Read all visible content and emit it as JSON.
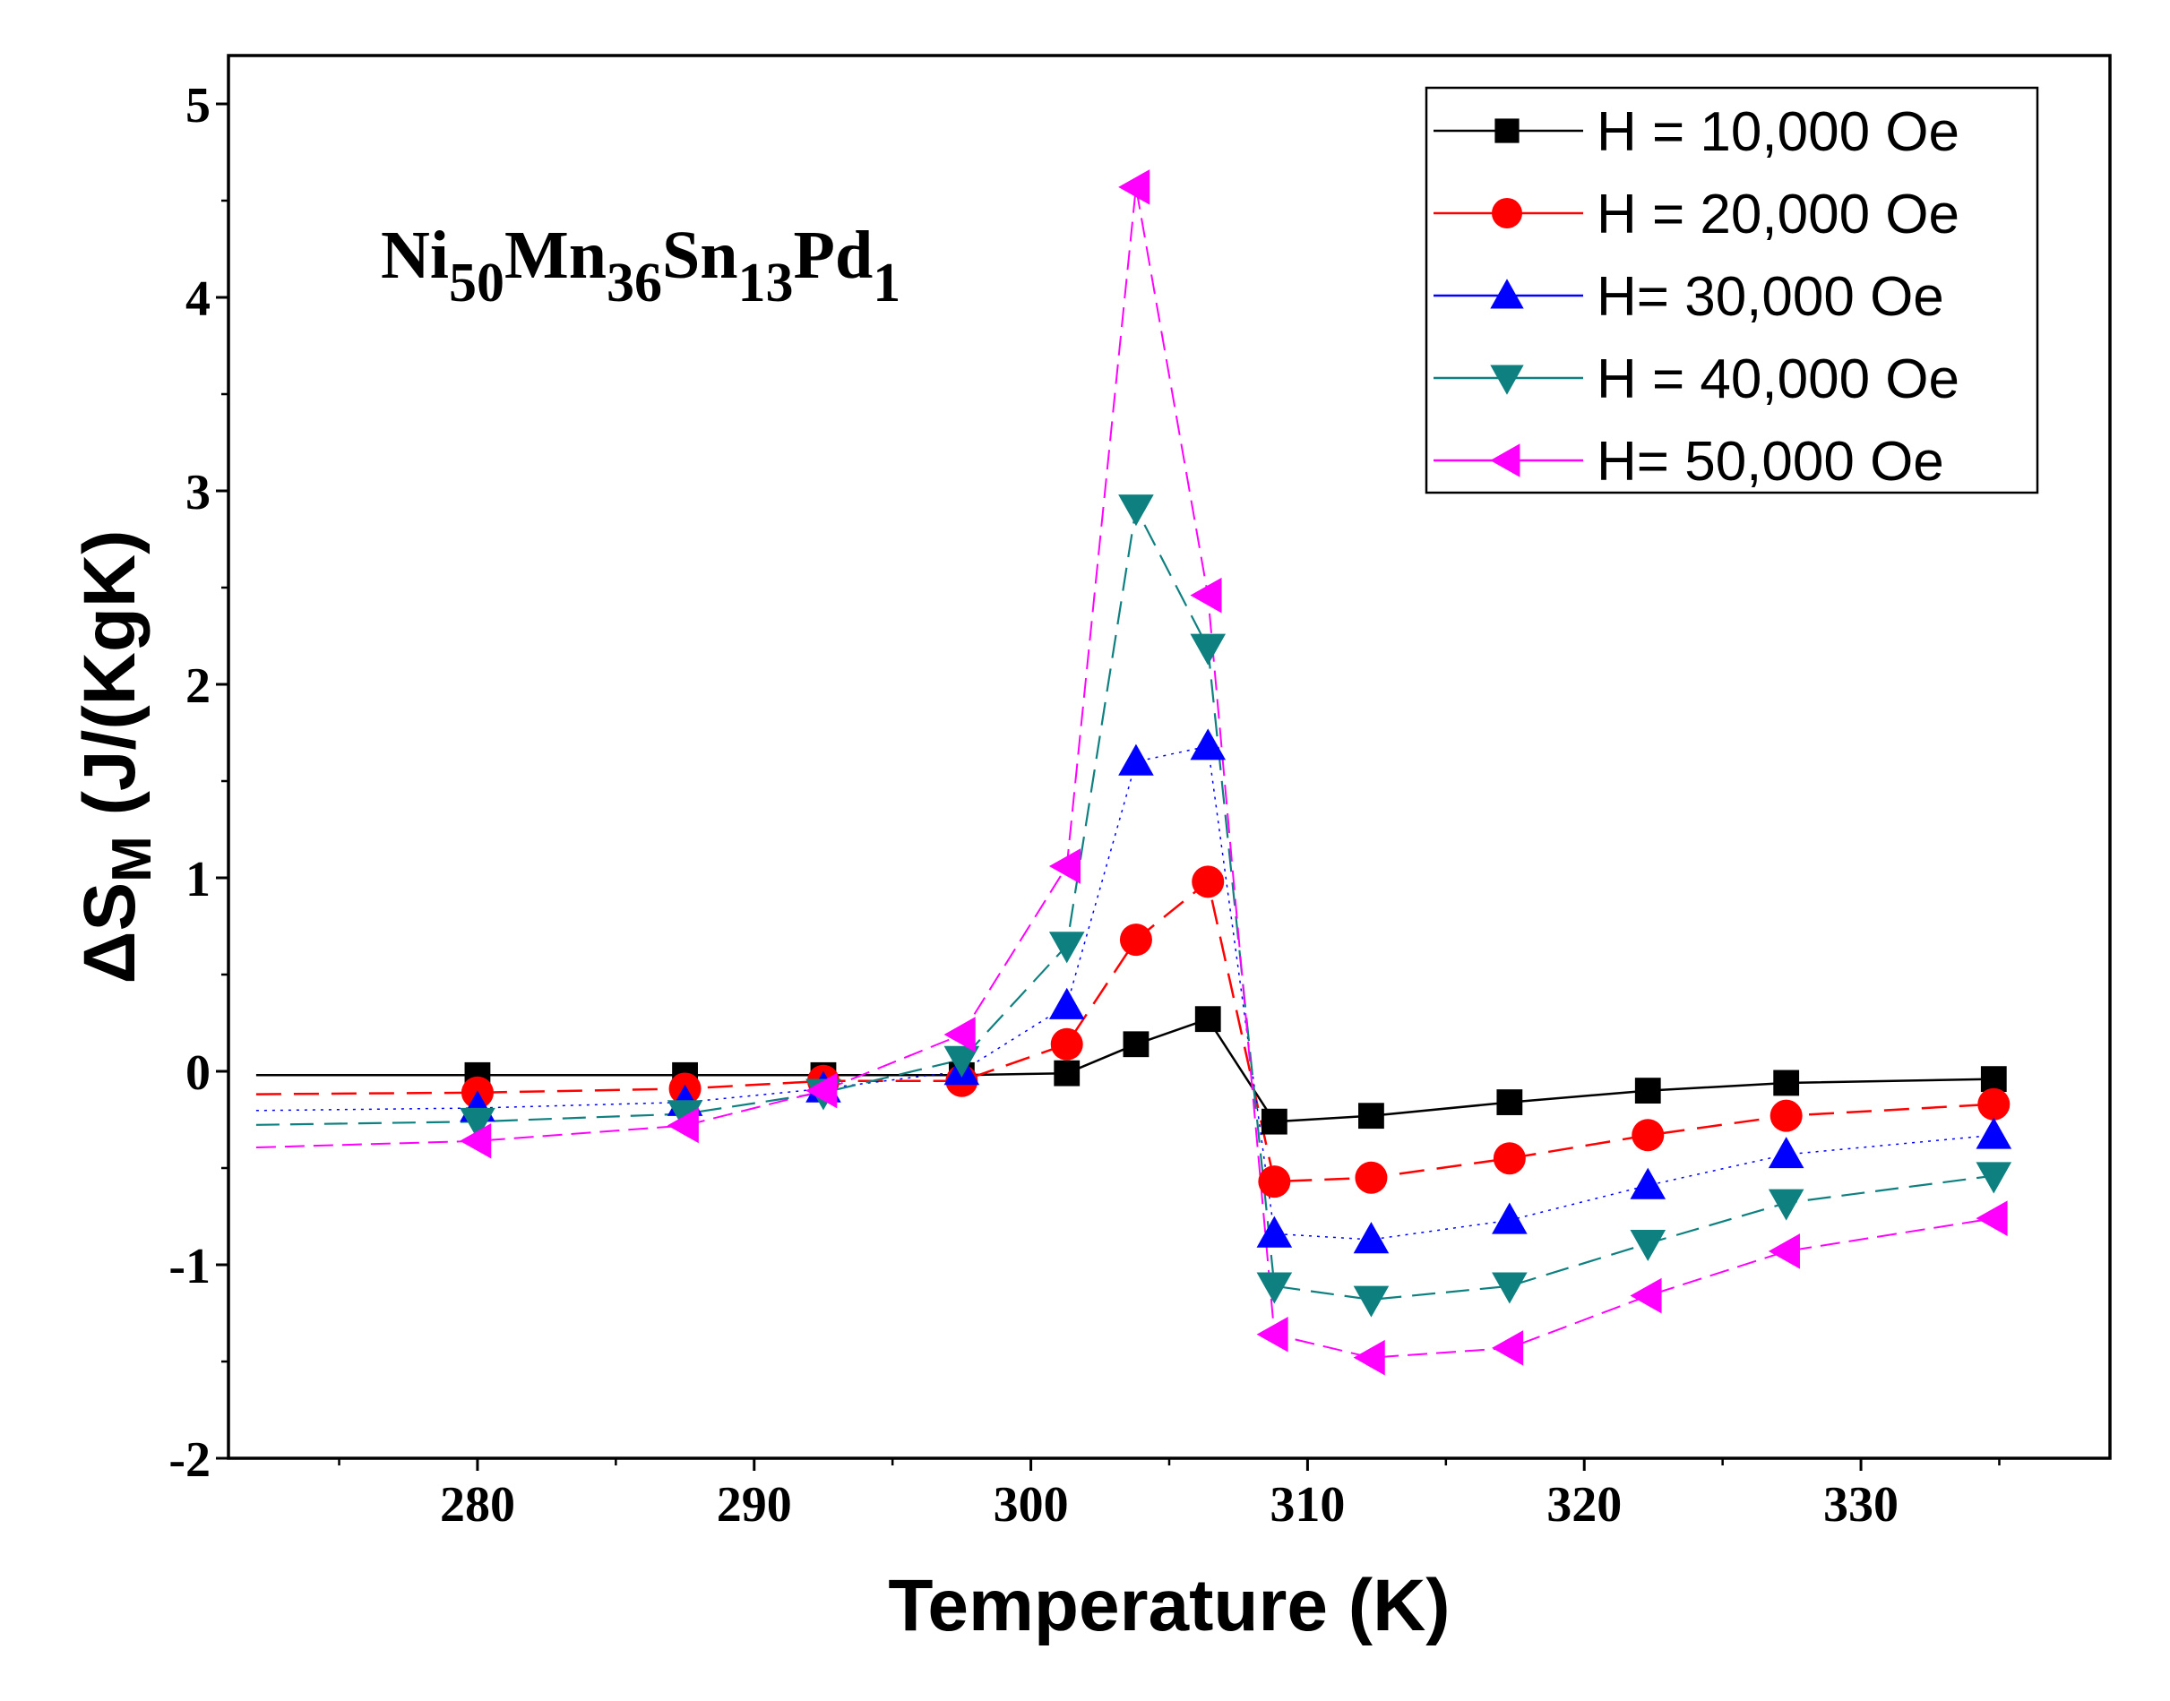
{
  "chart_data": {
    "type": "line",
    "title": "",
    "annotation": {
      "parts": [
        {
          "text": "Ni",
          "sub": false
        },
        {
          "text": "50",
          "sub": true
        },
        {
          "text": "Mn",
          "sub": false
        },
        {
          "text": "36",
          "sub": true
        },
        {
          "text": "Sn",
          "sub": false
        },
        {
          "text": "13",
          "sub": true
        },
        {
          "text": "Pd",
          "sub": false
        },
        {
          "text": "1",
          "sub": true
        }
      ]
    },
    "xlabel": "Temperature (K)",
    "ylabel": {
      "main": "ΔS",
      "sub": "M",
      "rest": " (J/(KgK)"
    },
    "xlim": [
      271,
      339
    ],
    "ylim": [
      -2,
      5.25
    ],
    "xticks": [
      "280",
      "290",
      "300",
      "310",
      "320",
      "330"
    ],
    "yticks": [
      "-2",
      "-1",
      "0",
      "1",
      "2",
      "3",
      "4",
      "5"
    ],
    "legend_position": "top-right",
    "x": [
      280,
      287.5,
      292.5,
      297.5,
      301.3,
      303.8,
      306.4,
      308.8,
      312.3,
      317.3,
      322.3,
      327.3,
      334.8
    ],
    "series": [
      {
        "name": "H = 10,000 Oe",
        "color": "#000000",
        "marker": "square",
        "values": [
          -0.02,
          -0.02,
          -0.02,
          -0.02,
          -0.01,
          0.14,
          0.27,
          -0.26,
          -0.23,
          -0.16,
          -0.1,
          -0.06,
          -0.04
        ]
      },
      {
        "name": "H = 20,000 Oe",
        "color": "#ff0000",
        "marker": "circle",
        "values": [
          -0.11,
          -0.09,
          -0.05,
          -0.05,
          0.14,
          0.68,
          0.98,
          -0.57,
          -0.55,
          -0.45,
          -0.33,
          -0.23,
          -0.17
        ]
      },
      {
        "name": "H= 30,000 Oe",
        "color": "#0000ff",
        "marker": "triangle-up",
        "values": [
          -0.19,
          -0.16,
          -0.09,
          0.0,
          0.34,
          1.6,
          1.68,
          -0.84,
          -0.87,
          -0.77,
          -0.59,
          -0.43,
          -0.33
        ]
      },
      {
        "name": "H = 40,000 Oe",
        "color": "#0e8080",
        "marker": "triangle-down",
        "values": [
          -0.26,
          -0.22,
          -0.11,
          0.06,
          0.65,
          2.91,
          2.19,
          -1.11,
          -1.18,
          -1.11,
          -0.89,
          -0.68,
          -0.54
        ]
      },
      {
        "name": "H= 50,000 Oe",
        "color": "#ff00ff",
        "marker": "triangle-left",
        "values": [
          -0.36,
          -0.28,
          -0.1,
          0.19,
          1.06,
          4.57,
          2.46,
          -1.36,
          -1.48,
          -1.43,
          -1.16,
          -0.93,
          -0.76
        ]
      }
    ]
  }
}
